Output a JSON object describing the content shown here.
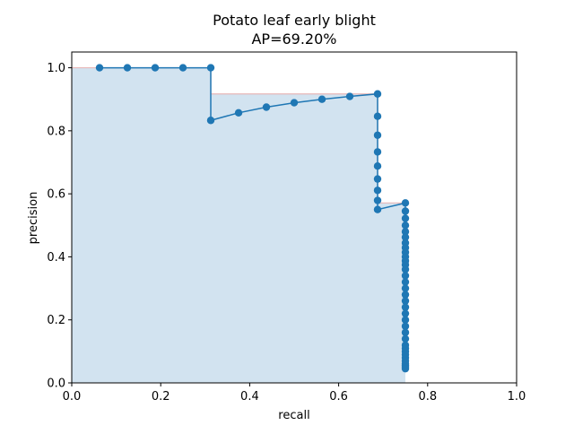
{
  "chart_data": {
    "type": "line",
    "title": "Potato leaf early blight",
    "subtitle": "AP=69.20%",
    "xlabel": "recall",
    "ylabel": "precision",
    "xlim": [
      0,
      1
    ],
    "ylim": [
      0,
      1.05
    ],
    "xticks": [
      "0.0",
      "0.2",
      "0.4",
      "0.6",
      "0.8",
      "1.0"
    ],
    "yticks": [
      "0.0",
      "0.2",
      "0.4",
      "0.6",
      "0.8",
      "1.0"
    ],
    "grid": false,
    "colors": {
      "series": "#1f77b4",
      "fill": "#d2e3f0",
      "interp": "#e8b8b8"
    },
    "series": [
      {
        "recall": [
          0.0625,
          0.125,
          0.1875,
          0.25,
          0.3125,
          0.3125,
          0.375,
          0.4375,
          0.5,
          0.5625,
          0.625,
          0.6875,
          0.6875,
          0.6875,
          0.6875,
          0.6875,
          0.6875,
          0.6875,
          0.6875,
          0.6875,
          0.75,
          0.75,
          0.75,
          0.75,
          0.75,
          0.75,
          0.75,
          0.75,
          0.75,
          0.75,
          0.75,
          0.75,
          0.75,
          0.75,
          0.75,
          0.75,
          0.75,
          0.75,
          0.75,
          0.75,
          0.75,
          0.75,
          0.75,
          0.75,
          0.75,
          0.75,
          0.75,
          0.75,
          0.75,
          0.75,
          0.75,
          0.75,
          0.75,
          0.75
        ],
        "precision": [
          1.0,
          1.0,
          1.0,
          1.0,
          1.0,
          0.833,
          0.857,
          0.875,
          0.889,
          0.9,
          0.909,
          0.917,
          0.846,
          0.786,
          0.733,
          0.688,
          0.647,
          0.611,
          0.579,
          0.55,
          0.571,
          0.545,
          0.522,
          0.5,
          0.48,
          0.462,
          0.444,
          0.429,
          0.414,
          0.4,
          0.387,
          0.375,
          0.36,
          0.34,
          0.32,
          0.3,
          0.28,
          0.26,
          0.24,
          0.22,
          0.2,
          0.18,
          0.16,
          0.14,
          0.12,
          0.11,
          0.1,
          0.09,
          0.08,
          0.07,
          0.06,
          0.055,
          0.05,
          0.045
        ]
      }
    ],
    "interpolated": {
      "recall": [
        0.0,
        0.3125,
        0.3125,
        0.6875,
        0.6875,
        0.75,
        0.75
      ],
      "precision": [
        1.0,
        1.0,
        0.917,
        0.917,
        0.571,
        0.571,
        0.0
      ]
    }
  }
}
